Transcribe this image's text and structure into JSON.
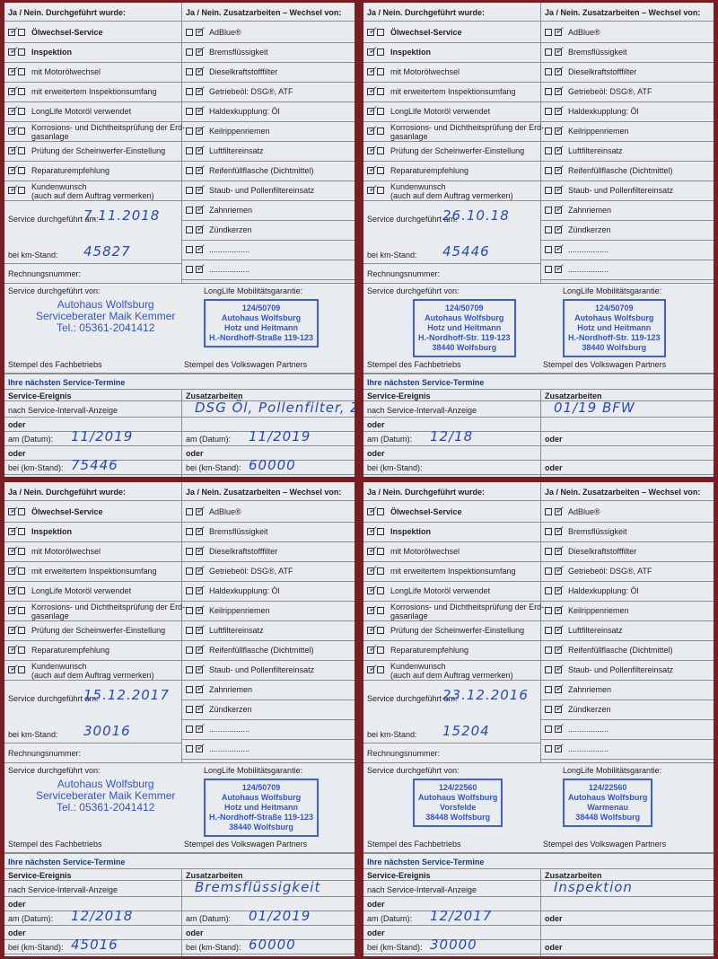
{
  "pages": [
    {
      "header_left": "Ja / Nein. Durchgeführt wurde:",
      "header_right": "Ja / Nein. Zusatzarbeiten – Wechsel von:",
      "left_items": [
        "Ölwechsel-Service",
        "Inspektion",
        "mit Motorölwechsel",
        "mit erweitertem Inspektionsumfang",
        "LongLife Motoröl verwendet",
        "Korrosions- und Dichtheitsprüfung der Erd-\ngasanlage",
        "Prüfung der Scheinwerfer-Einstellung",
        "Reparaturempfehlung",
        "Kundenwunsch\n(auch auf dem Auftrag vermerken)"
      ],
      "right_items": [
        "AdBlue®",
        "Bremsflüssigkeit",
        "Dieselkraftstofffilter",
        "Getriebeöl: DSG®, ATF",
        "Haldexkupplung: Öl",
        "Keilrippenriemen",
        "Luftfiltereinsatz",
        "Reifenfüllflasche (Dichtmittel)",
        "Staub- und Pollenfiltereinsatz",
        "Zahnriemen",
        "Zündkerzen",
        "..................",
        ".................."
      ],
      "service_date_label": "Service durchgeführt am:",
      "service_date": "7.11.2018",
      "km_label": "bei km-Stand:",
      "km": "45827",
      "invoice_label": "Rechnungsnummer:",
      "performed_by_label": "Service durchgeführt von:",
      "guarantee_label": "LongLife Mobilitätsgarantie:",
      "stamp_left": {
        "framed": false,
        "lines": [
          "Autohaus Wolfsburg",
          "Serviceberater Maik Kemmer",
          "Tel.: 05361-2041412"
        ]
      },
      "stamp_right": {
        "framed": true,
        "lines": [
          "124/50709",
          "Autohaus Wolfsburg",
          "Hotz und Heitmann",
          "H.-Nordhoff-Straße 119-123"
        ]
      },
      "workshop_stamp_label": "Stempel des Fachbetriebs",
      "partner_stamp_label": "Stempel des Volkswagen Partners",
      "next": {
        "title": "Ihre nächsten Service-Termine",
        "col_left": "Service-Ereignis",
        "col_right": "Zusatzarbeiten",
        "rows": [
          {
            "left": {
              "label": "nach Service-Intervall-Anzeige"
            },
            "right": {
              "hw": "DSG Öl, Pollenfilter, Zündk."
            }
          },
          {
            "left": {
              "label": "oder"
            },
            "right": {}
          },
          {
            "left": {
              "label": "am (Datum):",
              "hw": "11/2019"
            },
            "right": {
              "label": "am (Datum):",
              "hw": "11/2019"
            }
          },
          {
            "left": {
              "label": "oder"
            },
            "right": {
              "label": "oder"
            }
          },
          {
            "left": {
              "label": "bei (km-Stand):",
              "hw": "75446"
            },
            "right": {
              "label": "bei (km-Stand):",
              "hw": "60000"
            }
          }
        ]
      }
    },
    {
      "header_left": "Ja / Nein. Durchgeführt wurde:",
      "header_right": "Ja / Nein. Zusatzarbeiten – Wechsel von:",
      "left_items": [
        "Ölwechsel-Service",
        "Inspektion",
        "mit Motorölwechsel",
        "mit erweitertem Inspektionsumfang",
        "LongLife Motoröl verwendet",
        "Korrosions- und Dichtheitsprüfung der Erd-\ngasanlage",
        "Prüfung der Scheinwerfer-Einstellung",
        "Reparaturempfehlung",
        "Kundenwunsch\n(auch auf dem Auftrag vermerken)"
      ],
      "right_items": [
        "AdBlue®",
        "Bremsflüssigkeit",
        "Dieselkraftstofffilter",
        "Getriebeöl: DSG®, ATF",
        "Haldexkupplung: Öl",
        "Keilrippenriemen",
        "Luftfiltereinsatz",
        "Reifenfüllflasche (Dichtmittel)",
        "Staub- und Pollenfiltereinsatz",
        "Zahnriemen",
        "Zündkerzen",
        "..................",
        ".................."
      ],
      "service_date_label": "Service durchgeführt am:",
      "service_date": "26.10.18",
      "km_label": "bei km-Stand:",
      "km": "45446",
      "invoice_label": "Rechnungsnummer:",
      "performed_by_label": "Service durchgeführt von:",
      "guarantee_label": "LongLife Mobilitätsgarantie:",
      "stamp_left": {
        "framed": true,
        "lines": [
          "124/50709",
          "Autohaus Wolfsburg",
          "Hotz und Heitmann",
          "H.-Nordhoff-Str. 119-123",
          "38440 Wolfsburg"
        ]
      },
      "stamp_right": {
        "framed": true,
        "lines": [
          "124/50709",
          "Autohaus Wolfsburg",
          "Hotz und Heitmann",
          "H.-Nordhoff-Str. 119-123",
          "38440 Wolfsburg"
        ]
      },
      "workshop_stamp_label": "Stempel des Fachbetriebs",
      "partner_stamp_label": "Stempel des Volkswagen Partners",
      "next": {
        "title": "Ihre nächsten Service-Termine",
        "col_left": "Service-Ereignis",
        "col_right": "Zusatzarbeiten",
        "rows": [
          {
            "left": {
              "label": "nach Service-Intervall-Anzeige"
            },
            "right": {
              "hw": "01/19 BFW"
            }
          },
          {
            "left": {
              "label": "oder"
            },
            "right": {}
          },
          {
            "left": {
              "label": "am (Datum):",
              "hw": "12/18"
            },
            "right": {
              "label": "oder"
            }
          },
          {
            "left": {
              "label": "oder"
            },
            "right": {}
          },
          {
            "left": {
              "label": "bei (km-Stand):"
            },
            "right": {
              "label": "oder"
            }
          }
        ]
      }
    },
    {
      "header_left": "Ja / Nein. Durchgeführt wurde:",
      "header_right": "Ja / Nein. Zusatzarbeiten – Wechsel von:",
      "left_items": [
        "Ölwechsel-Service",
        "Inspektion",
        "mit Motorölwechsel",
        "mit erweitertem Inspektionsumfang",
        "LongLife Motoröl verwendet",
        "Korrosions- und Dichtheitsprüfung der Erd-\ngasanlage",
        "Prüfung der Scheinwerfer-Einstellung",
        "Reparaturempfehlung",
        "Kundenwunsch\n(auch auf dem Auftrag vermerken)"
      ],
      "right_items": [
        "AdBlue®",
        "Bremsflüssigkeit",
        "Dieselkraftstofffilter",
        "Getriebeöl: DSG®, ATF",
        "Haldexkupplung: Öl",
        "Keilrippenriemen",
        "Luftfiltereinsatz",
        "Reifenfüllflasche (Dichtmittel)",
        "Staub- und Pollenfiltereinsatz",
        "Zahnriemen",
        "Zündkerzen",
        "..................",
        ".................."
      ],
      "service_date_label": "Service durchgeführt am:",
      "service_date": "15.12.2017",
      "km_label": "bei km-Stand:",
      "km": "30016",
      "invoice_label": "Rechnungsnummer:",
      "performed_by_label": "Service durchgeführt von:",
      "guarantee_label": "LongLife Mobilitätsgarantie:",
      "stamp_left": {
        "framed": false,
        "lines": [
          "Autohaus Wolfsburg",
          "Serviceberater Maik Kemmer",
          "Tel.: 05361-2041412"
        ]
      },
      "stamp_right": {
        "framed": true,
        "lines": [
          "124/50709",
          "Autohaus Wolfsburg",
          "Hotz und Heitmann",
          "H.-Nordhoff-Straße 119-123",
          "38440 Wolfsburg"
        ]
      },
      "workshop_stamp_label": "Stempel des Fachbetriebs",
      "partner_stamp_label": "Stempel des Volkswagen Partners",
      "next": {
        "title": "Ihre nächsten Service-Termine",
        "col_left": "Service-Ereignis",
        "col_right": "Zusatzarbeiten",
        "rows": [
          {
            "left": {
              "label": "nach Service-Intervall-Anzeige"
            },
            "right": {
              "hw": "Bremsflüssigkeit"
            }
          },
          {
            "left": {
              "label": "oder"
            },
            "right": {}
          },
          {
            "left": {
              "label": "am (Datum):",
              "hw": "12/2018"
            },
            "right": {
              "label": "am (Datum):",
              "hw": "01/2019"
            }
          },
          {
            "left": {
              "label": "oder"
            },
            "right": {
              "label": "oder"
            }
          },
          {
            "left": {
              "label": "bei (km-Stand):",
              "hw": "45016"
            },
            "right": {
              "label": "bei (km-Stand):",
              "hw": "60000"
            }
          }
        ]
      }
    },
    {
      "header_left": "Ja / Nein. Durchgeführt wurde:",
      "header_right": "Ja / Nein. Zusatzarbeiten – Wechsel von:",
      "left_items": [
        "Ölwechsel-Service",
        "Inspektion",
        "mit Motorölwechsel",
        "mit erweitertem Inspektionsumfang",
        "LongLife Motoröl verwendet",
        "Korrosions- und Dichtheitsprüfung der Erd-\ngasanlage",
        "Prüfung der Scheinwerfer-Einstellung",
        "Reparaturempfehlung",
        "Kundenwunsch\n(auch auf dem Auftrag vermerken)"
      ],
      "right_items": [
        "AdBlue®",
        "Bremsflüssigkeit",
        "Dieselkraftstofffilter",
        "Getriebeöl: DSG®, ATF",
        "Haldexkupplung: Öl",
        "Keilrippenriemen",
        "Luftfiltereinsatz",
        "Reifenfüllflasche (Dichtmittel)",
        "Staub- und Pollenfiltereinsatz",
        "Zahnriemen",
        "Zündkerzen",
        "..................",
        ".................."
      ],
      "service_date_label": "Service durchgeführt am:",
      "service_date": "23.12.2016",
      "km_label": "bei km-Stand:",
      "km": "15204",
      "invoice_label": "Rechnungsnummer:",
      "performed_by_label": "Service durchgeführt von:",
      "guarantee_label": "LongLife Mobilitätsgarantie:",
      "stamp_left": {
        "framed": true,
        "lines": [
          "124/22560",
          "Autohaus Wolfsburg",
          "Vorsfelde",
          "38448 Wolfsburg"
        ]
      },
      "stamp_right": {
        "framed": true,
        "lines": [
          "124/22560",
          "Autohaus Wolfsburg",
          "Warmenau",
          "38448 Wolfsburg"
        ]
      },
      "workshop_stamp_label": "Stempel des Fachbetriebs",
      "partner_stamp_label": "Stempel des Volkswagen Partners",
      "next": {
        "title": "Ihre nächsten Service-Termine",
        "col_left": "Service-Ereignis",
        "col_right": "Zusatzarbeiten",
        "rows": [
          {
            "left": {
              "label": "nach Service-Intervall-Anzeige"
            },
            "right": {
              "hw": "Inspektion"
            }
          },
          {
            "left": {
              "label": "oder"
            },
            "right": {}
          },
          {
            "left": {
              "label": "am (Datum):",
              "hw": "12/2017"
            },
            "right": {
              "label": "oder"
            }
          },
          {
            "left": {
              "label": "oder"
            },
            "right": {}
          },
          {
            "left": {
              "label": "bei (km-Stand):",
              "hw": "30000"
            },
            "right": {
              "label": "oder"
            }
          }
        ]
      }
    }
  ]
}
